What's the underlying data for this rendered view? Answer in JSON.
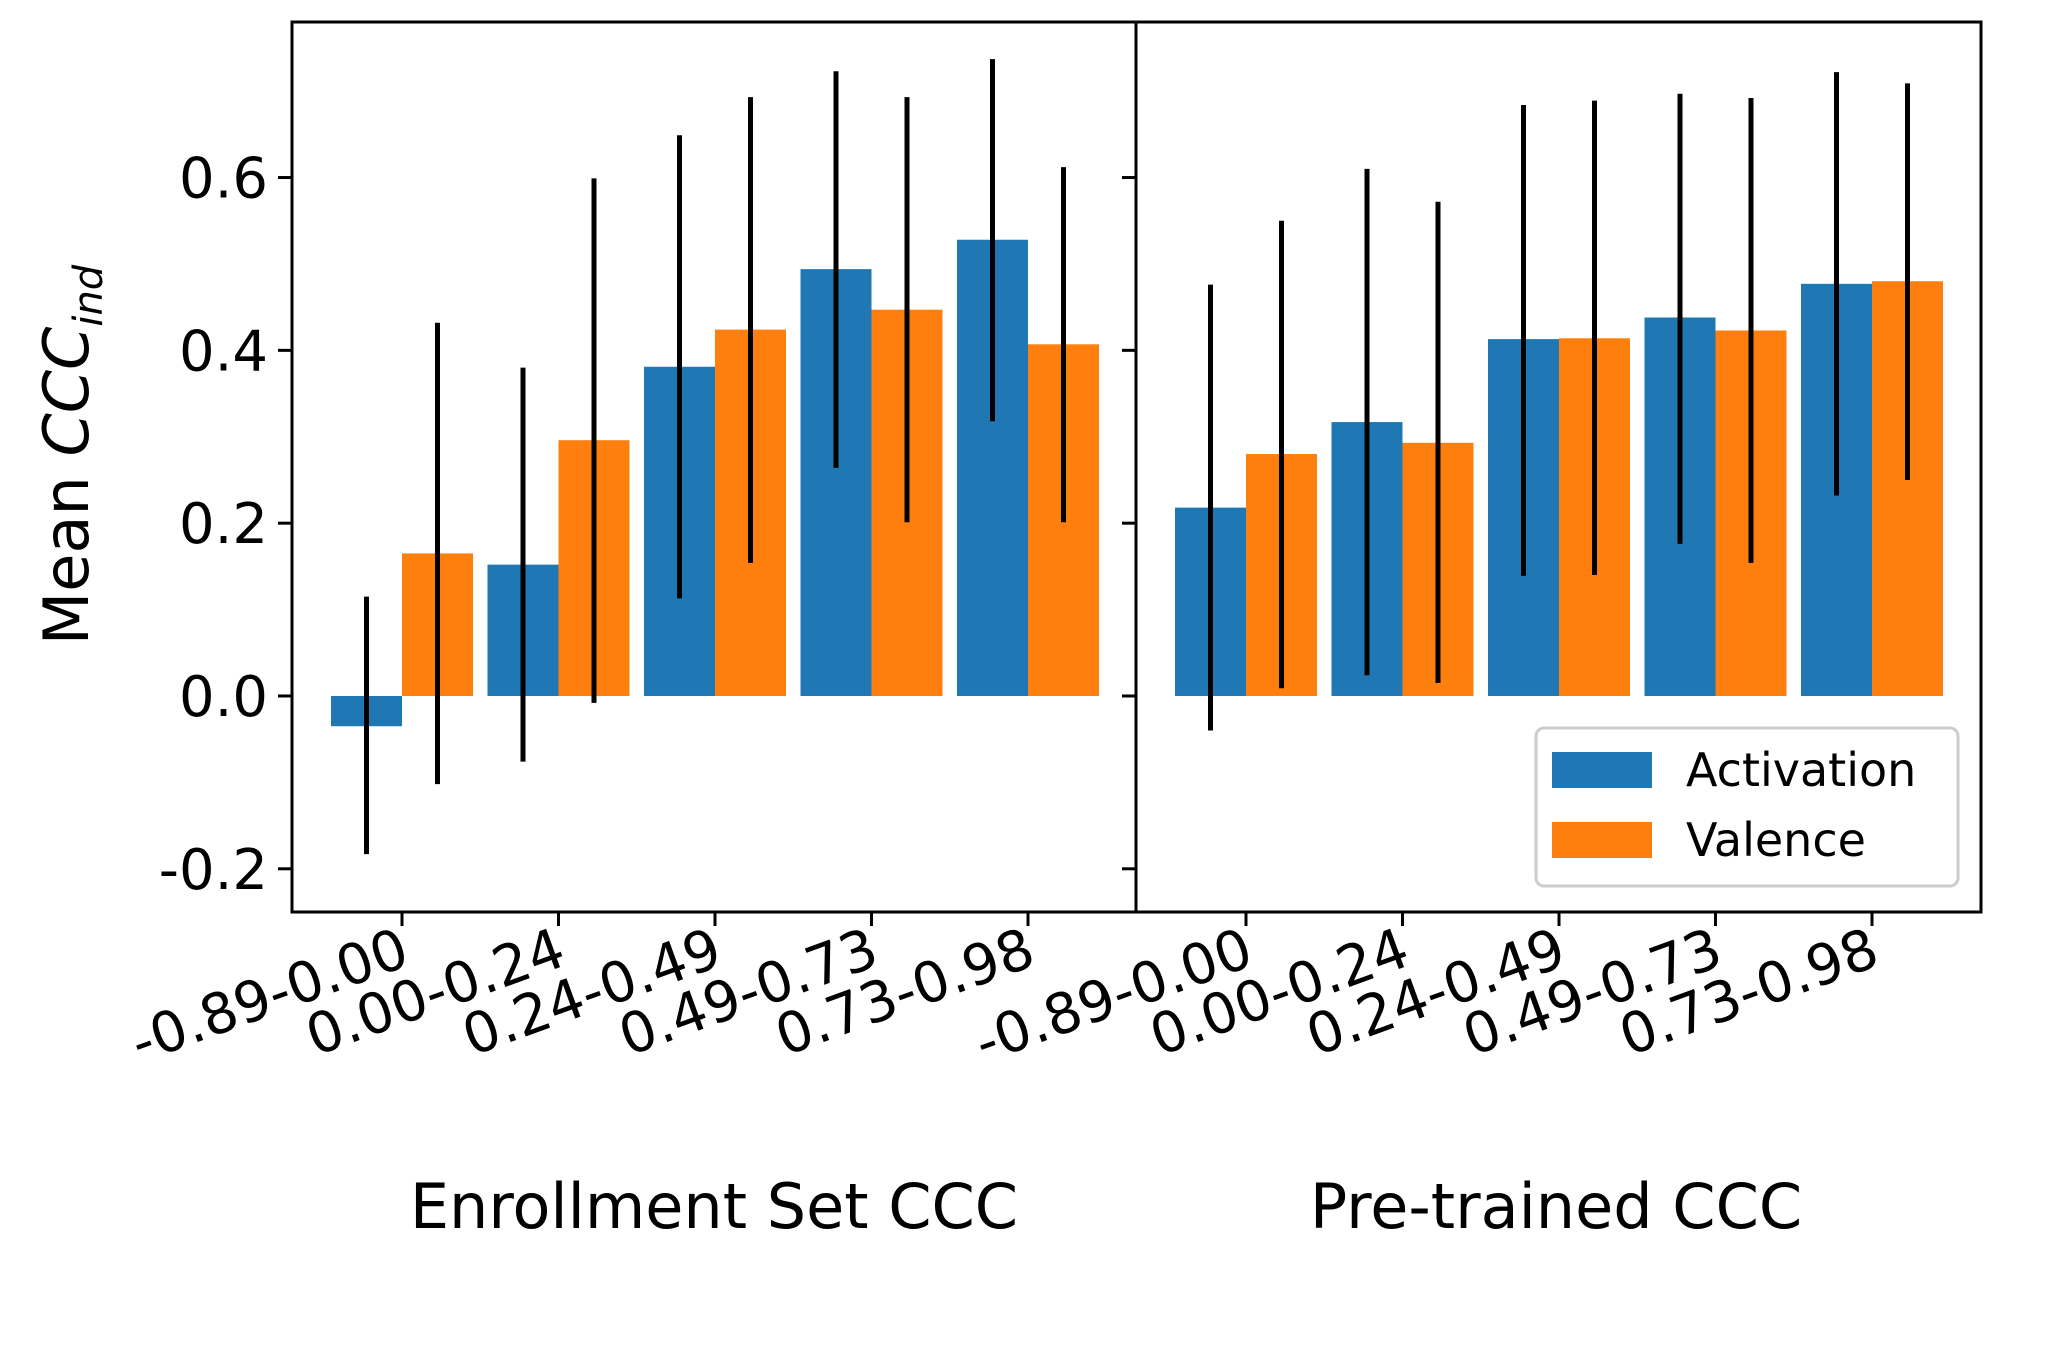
{
  "chart_data": {
    "type": "bar",
    "ylabel_main": "Mean ",
    "ylabel_math": "CCC",
    "ylabel_sub": "ind",
    "ylim": [
      -0.25,
      0.78
    ],
    "yticks": [
      -0.2,
      0.0,
      0.2,
      0.4,
      0.6
    ],
    "ytick_labels": [
      "-0.2",
      "0.0",
      "0.2",
      "0.4",
      "0.6"
    ],
    "legend": {
      "location": "lower right",
      "entries": [
        {
          "label": "Activation",
          "color": "#1f77b4"
        },
        {
          "label": "Valence",
          "color": "#ff7f0e"
        }
      ]
    },
    "panels": [
      {
        "xlabel": "Enrollment Set CCC",
        "categories": [
          "-0.89-0.00",
          "0.00-0.24",
          "0.24-0.49",
          "0.49-0.73",
          "0.73-0.98"
        ],
        "series": [
          {
            "name": "Activation",
            "color": "#1f77b4",
            "values": [
              -0.035,
              0.152,
              0.381,
              0.494,
              0.528
            ],
            "err_low": [
              -0.183,
              -0.076,
              0.113,
              0.264,
              0.318
            ],
            "err_high": [
              0.115,
              0.38,
              0.649,
              0.723,
              0.737
            ]
          },
          {
            "name": "Valence",
            "color": "#ff7f0e",
            "values": [
              0.165,
              0.296,
              0.424,
              0.447,
              0.407
            ],
            "err_low": [
              -0.102,
              -0.008,
              0.154,
              0.201,
              0.201
            ],
            "err_high": [
              0.432,
              0.599,
              0.693,
              0.693,
              0.612
            ]
          }
        ]
      },
      {
        "xlabel": "Pre-trained CCC",
        "categories": [
          "-0.89-0.00",
          "0.00-0.24",
          "0.24-0.49",
          "0.49-0.73",
          "0.73-0.98"
        ],
        "series": [
          {
            "name": "Activation",
            "color": "#1f77b4",
            "values": [
              0.218,
              0.317,
              0.413,
              0.438,
              0.477
            ],
            "err_low": [
              -0.04,
              0.024,
              0.139,
              0.176,
              0.232
            ],
            "err_high": [
              0.476,
              0.61,
              0.684,
              0.697,
              0.722
            ]
          },
          {
            "name": "Valence",
            "color": "#ff7f0e",
            "values": [
              0.28,
              0.293,
              0.414,
              0.423,
              0.48
            ],
            "err_low": [
              0.009,
              0.015,
              0.14,
              0.154,
              0.25
            ],
            "err_high": [
              0.55,
              0.572,
              0.689,
              0.692,
              0.709
            ]
          }
        ]
      }
    ]
  }
}
